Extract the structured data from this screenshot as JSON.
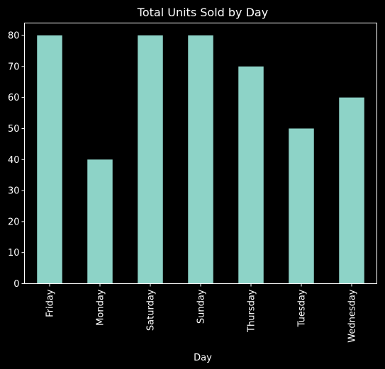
{
  "chart_data": {
    "type": "bar",
    "title": "Total Units Sold by Day",
    "xlabel": "Day",
    "ylabel": "",
    "categories": [
      "Friday",
      "Monday",
      "Saturday",
      "Sunday",
      "Thursday",
      "Tuesday",
      "Wednesday"
    ],
    "values": [
      80,
      40,
      80,
      80,
      70,
      50,
      60
    ],
    "ylim": [
      0,
      84
    ],
    "yticks": [
      0,
      10,
      20,
      30,
      40,
      50,
      60,
      70,
      80
    ],
    "grid": false,
    "legend": "none",
    "bar_color": "#8dd3c7",
    "background_color": "#000000",
    "axis_color": "#ffffff"
  }
}
